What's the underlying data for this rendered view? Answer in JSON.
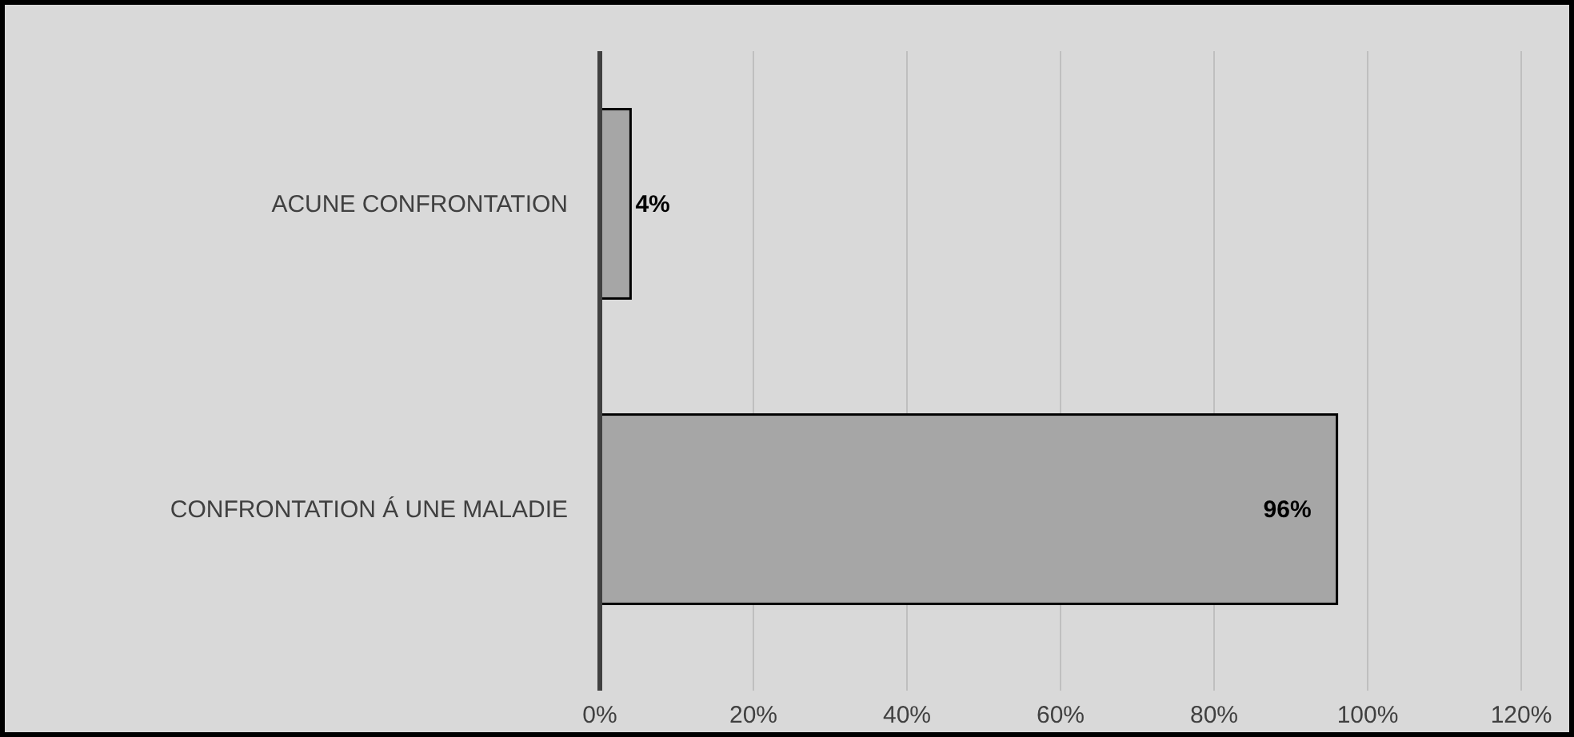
{
  "chart_data": {
    "type": "bar",
    "orientation": "horizontal",
    "categories": [
      "ACUNE CONFRONTATION",
      "CONFRONTATION Á UNE MALADIE"
    ],
    "values": [
      4,
      96
    ],
    "color": "#a6a6a6",
    "value_labels": [
      "4%",
      "96%"
    ],
    "xlim": [
      0,
      120
    ],
    "xticks": [
      {
        "value": 0,
        "label": "0%"
      },
      {
        "value": 20,
        "label": "20%"
      },
      {
        "value": 40,
        "label": "40%"
      },
      {
        "value": 60,
        "label": "60%"
      },
      {
        "value": 80,
        "label": "80%"
      },
      {
        "value": 100,
        "label": "100%"
      },
      {
        "value": 120,
        "label": "120%"
      }
    ],
    "grid": "x"
  }
}
